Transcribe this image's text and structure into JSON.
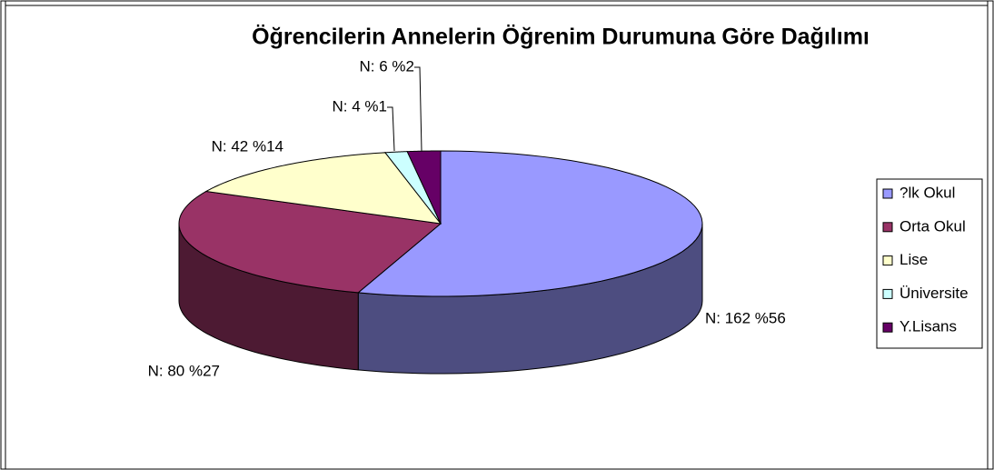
{
  "chart_data": {
    "type": "pie",
    "title": "Öğrencilerin Annelerin Öğrenim Durumuna Göre Dağılımı",
    "categories": [
      "?lk Okul",
      "Orta Okul",
      "Lise",
      "Üniversite",
      "Y.Lisans"
    ],
    "values": [
      162,
      80,
      42,
      4,
      6
    ],
    "value_labels": [
      "N: 162 %56",
      "N: 80 %27",
      "N: 42 %14",
      "N: 4 %1",
      "N: 6 %2"
    ],
    "colors": [
      "#9999ff",
      "#993366",
      "#ffffcc",
      "#ccffff",
      "#660066"
    ],
    "legend": "right"
  }
}
